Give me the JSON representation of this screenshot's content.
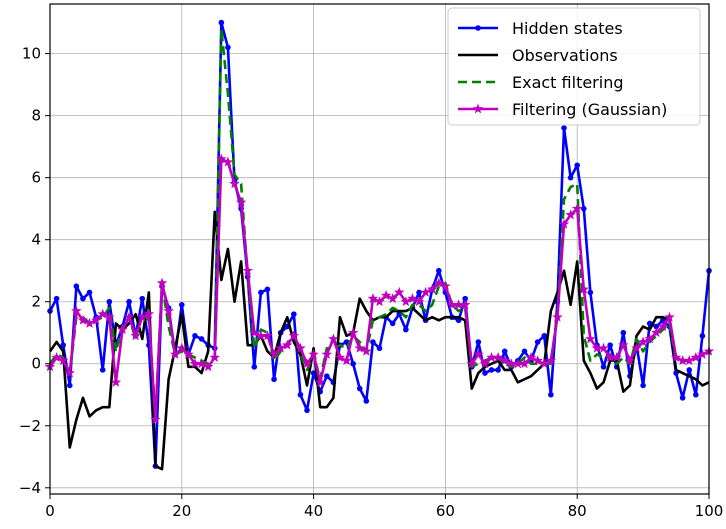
{
  "chart_data": {
    "type": "line",
    "title": "",
    "xlabel": "",
    "ylabel": "",
    "xlim": [
      0,
      100
    ],
    "ylim": [
      -4.2,
      11.6
    ],
    "xticks": [
      0,
      20,
      40,
      60,
      80,
      100
    ],
    "yticks": [
      -4,
      -2,
      0,
      2,
      4,
      6,
      8,
      10
    ],
    "grid": true,
    "legend_position": "top-right",
    "x": [
      0,
      1,
      2,
      3,
      4,
      5,
      6,
      7,
      8,
      9,
      10,
      11,
      12,
      13,
      14,
      15,
      16,
      17,
      18,
      19,
      20,
      21,
      22,
      23,
      24,
      25,
      26,
      27,
      28,
      29,
      30,
      31,
      32,
      33,
      34,
      35,
      36,
      37,
      38,
      39,
      40,
      41,
      42,
      43,
      44,
      45,
      46,
      47,
      48,
      49,
      50,
      51,
      52,
      53,
      54,
      55,
      56,
      57,
      58,
      59,
      60,
      61,
      62,
      63,
      64,
      65,
      66,
      67,
      68,
      69,
      70,
      71,
      72,
      73,
      74,
      75,
      76,
      77,
      78,
      79,
      80,
      81,
      82,
      83,
      84,
      85,
      86,
      87,
      88,
      89,
      90,
      91,
      92,
      93,
      94,
      95,
      96,
      97,
      98,
      99,
      100
    ],
    "series": [
      {
        "name": "Hidden states",
        "color": "#0000ff",
        "style": "solid-dot",
        "values": [
          1.7,
          2.1,
          0.6,
          -0.7,
          2.5,
          2.1,
          2.3,
          1.5,
          -0.2,
          2.0,
          0.6,
          1.2,
          2.0,
          0.9,
          2.1,
          0.6,
          -3.3,
          2.5,
          1.8,
          0.3,
          1.9,
          0.3,
          0.9,
          0.8,
          0.6,
          0.5,
          11.0,
          10.2,
          5.9,
          5.0,
          2.8,
          -0.1,
          2.3,
          2.4,
          -0.5,
          1.0,
          1.2,
          1.6,
          -1.0,
          -1.5,
          -0.3,
          -0.9,
          -0.4,
          -0.6,
          0.6,
          0.7,
          0.0,
          -0.8,
          -1.2,
          0.7,
          0.5,
          1.5,
          1.3,
          1.6,
          1.1,
          1.8,
          2.3,
          1.4,
          2.4,
          3.0,
          2.3,
          1.5,
          1.4,
          2.1,
          -0.1,
          0.7,
          -0.3,
          -0.2,
          -0.2,
          0.4,
          -0.1,
          0.1,
          0.4,
          0.1,
          0.7,
          0.9,
          -1.0,
          2.0,
          7.6,
          6.0,
          6.4,
          5.0,
          2.3,
          0.6,
          -0.1,
          0.6,
          -0.1,
          1.0,
          -0.4,
          0.6,
          -0.7,
          1.3,
          1.2,
          1.4,
          1.2,
          -0.3,
          -1.1,
          -0.2,
          -1.0,
          0.9,
          3.0
        ]
      },
      {
        "name": "Observations",
        "color": "#000000",
        "style": "solid",
        "values": [
          0.4,
          0.7,
          0.4,
          -2.7,
          -1.8,
          -1.1,
          -1.7,
          -1.5,
          -1.4,
          -1.4,
          1.3,
          1.1,
          1.3,
          1.6,
          0.8,
          2.3,
          -3.3,
          -3.4,
          -0.5,
          0.5,
          1.6,
          -0.1,
          -0.1,
          -0.3,
          0.4,
          4.9,
          2.7,
          3.7,
          2.0,
          3.3,
          0.6,
          0.6,
          0.9,
          0.4,
          0.2,
          1.0,
          1.5,
          0.7,
          0.3,
          -0.7,
          0.5,
          -1.4,
          -1.4,
          -1.1,
          1.5,
          0.9,
          1.0,
          2.1,
          1.7,
          1.4,
          1.5,
          1.5,
          1.7,
          1.7,
          1.7,
          1.8,
          1.6,
          1.4,
          1.5,
          1.4,
          1.5,
          1.5,
          1.5,
          1.4,
          -0.8,
          -0.3,
          -0.1,
          0.0,
          0.1,
          -0.2,
          -0.2,
          -0.6,
          -0.5,
          -0.4,
          -0.2,
          0.0,
          1.7,
          2.3,
          3.0,
          1.9,
          3.3,
          0.1,
          -0.3,
          -0.8,
          -0.6,
          0.1,
          0.1,
          -0.9,
          -0.7,
          0.9,
          1.2,
          1.1,
          1.5,
          1.5,
          1.4,
          -0.2,
          -0.3,
          -0.4,
          -0.5,
          -0.7,
          -0.6
        ]
      },
      {
        "name": "Exact filtering",
        "color": "#008000",
        "style": "dashed",
        "values": [
          0.0,
          0.3,
          0.2,
          -0.3,
          1.5,
          1.5,
          1.3,
          1.4,
          1.5,
          1.8,
          0.4,
          1.2,
          1.5,
          0.8,
          1.6,
          1.4,
          -1.7,
          2.6,
          1.2,
          0.3,
          0.4,
          0.3,
          0.2,
          0.1,
          0.0,
          0.2,
          10.8,
          8.7,
          6.1,
          5.8,
          2.8,
          0.5,
          1.1,
          1.0,
          0.1,
          0.4,
          0.6,
          1.0,
          0.3,
          -0.2,
          0.3,
          -0.5,
          0.5,
          0.5,
          0.6,
          0.5,
          0.9,
          0.7,
          0.4,
          1.4,
          1.5,
          1.6,
          1.8,
          1.7,
          1.5,
          1.9,
          1.9,
          1.7,
          1.9,
          2.5,
          2.6,
          1.9,
          1.7,
          1.8,
          -0.1,
          0.0,
          0.1,
          0.2,
          0.2,
          0.0,
          -0.1,
          0.0,
          0.2,
          0.0,
          0.0,
          0.0,
          0.0,
          1.6,
          5.3,
          5.7,
          5.8,
          0.9,
          0.1,
          0.3,
          0.2,
          0.3,
          0.0,
          0.2,
          0.0,
          0.8,
          0.4,
          0.7,
          0.9,
          1.1,
          1.3,
          0.1,
          0.1,
          0.1,
          0.2,
          0.3,
          0.4
        ]
      },
      {
        "name": "Filtering (Gaussian)",
        "color": "#bf00bf",
        "style": "solid-star",
        "values": [
          -0.1,
          0.2,
          0.1,
          -0.3,
          1.7,
          1.4,
          1.3,
          1.4,
          1.6,
          1.5,
          -0.6,
          1.1,
          1.5,
          0.9,
          1.5,
          1.6,
          -1.8,
          2.6,
          1.7,
          0.3,
          0.5,
          0.3,
          0.0,
          0.0,
          -0.1,
          0.2,
          6.6,
          6.5,
          5.8,
          5.2,
          3.0,
          1.0,
          0.9,
          0.9,
          0.3,
          0.5,
          0.6,
          0.9,
          0.5,
          0.0,
          0.3,
          -0.6,
          0.3,
          0.8,
          0.2,
          0.1,
          1.0,
          0.5,
          0.4,
          2.1,
          2.0,
          2.2,
          2.1,
          2.3,
          2.0,
          2.1,
          2.0,
          2.3,
          2.4,
          2.6,
          2.5,
          1.9,
          1.9,
          1.9,
          0.0,
          0.3,
          0.0,
          0.2,
          0.2,
          0.1,
          0.0,
          0.0,
          0.0,
          0.2,
          0.1,
          0.0,
          0.1,
          1.5,
          4.5,
          4.8,
          5.0,
          2.4,
          0.8,
          0.5,
          0.5,
          0.2,
          0.2,
          0.6,
          0.1,
          0.5,
          0.7,
          0.8,
          1.0,
          1.2,
          1.5,
          0.2,
          0.1,
          0.1,
          0.2,
          0.3,
          0.4
        ]
      }
    ]
  }
}
